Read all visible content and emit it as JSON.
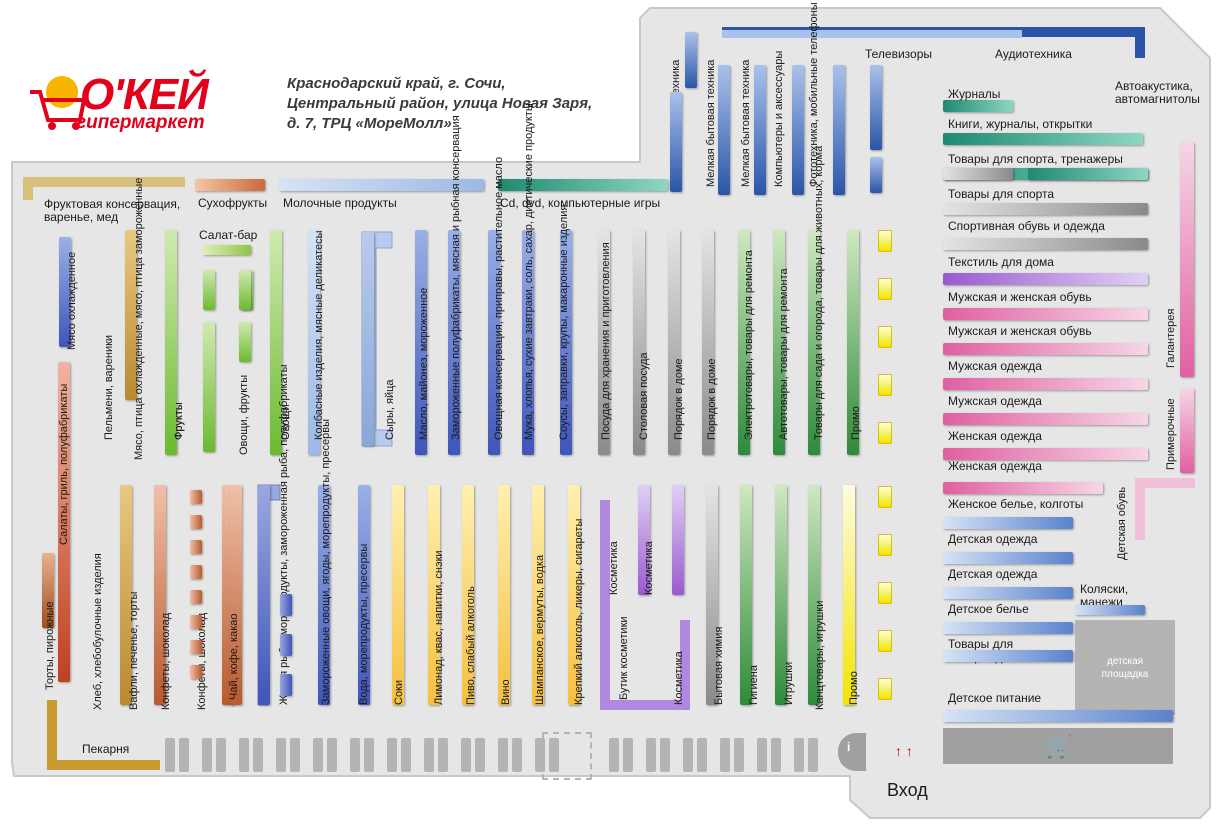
{
  "brand": {
    "name": "О'КЕЙ",
    "subtitle": "гипермаркет"
  },
  "address": {
    "line1": "Краснодарский край, г. Сочи,",
    "line2": "Центральный район, улица Новая Заря,",
    "line3": "д. 7, ТРЦ «МореМолл»"
  },
  "colors": {
    "floor": "#e6e6e6",
    "outline": "#c8c8c8",
    "accent": "#e3001b",
    "blue": "#2a55a8",
    "green": "#2e8a3a",
    "teal": "#1e8a70",
    "pink": "#e060a0",
    "yellow": "#f2e400",
    "brown": "#b85a30",
    "gold": "#c89a30",
    "purple": "#9a5ad0",
    "gray": "#8a8a8a",
    "slate": "#5a6ab8"
  },
  "top_labels": {
    "fruit_conserve": "Фруктовая консервация, варенье, мед",
    "dried_fruit": "Сухофрукты",
    "dairy": "Молочные продукты",
    "cd_dvd": "Cd, dvd, компьютерные игры",
    "tv": "Телевизоры",
    "audio": "Аудиотехника",
    "auto_acoustics": "Автоакустика, автомагнитолы",
    "salad_bar": "Салат-бар"
  },
  "upper_aisles": [
    "Мясо охлажденное",
    "Пельмени, вареники",
    "Мясо, птица охлажденные, мясо, птица замороженные",
    "Фрукты",
    "Фрукты",
    "Овощи, фрукты",
    "Овощи",
    "Колбасные изделия, мясные деликатесы",
    "Сыры, яйца",
    "Масло, майонез, мороженное",
    "Замороженные полуфабрикаты, мясная и рыбная консервация",
    "Овощная консервация, приправы, растительное масло",
    "Мука, хлопья, сухие завтраки, соль, сахар, диетические продукты",
    "Соусы, заправки, крупы, макаронные изделия",
    "Посуда для хранения и приготовления",
    "Столовая посуда",
    "Порядок в доме",
    "Порядок в доме",
    "Электротовары, товары для ремонта",
    "Автотовары, товары для ремонта",
    "Товары для сада и огорода, товары для животных, корма",
    "Промо"
  ],
  "lower_aisles": [
    "Торты, пирожные",
    "Салаты, гриль, полуфабрикаты",
    "Хлеб, хлебобулочные изделия",
    "Вафли, печенье, торты",
    "Конфеты, шоколад",
    "Конфеты, шоколад",
    "Чай, кофе, какао",
    "Живая рыба, морепродукты, замороженная рыба, полуфабрикаты",
    "Замороженные овощи, ягоды, морепродукты, пресервы",
    "Вода, морепродукты, пресервы",
    "Соки",
    "Лимонад, квас, напитки, снэки",
    "Пиво, слабый алкоголь",
    "Вино",
    "Шампанское, вермуты, водка",
    "Крепкий алкоголь, ликеры, сигареты",
    "Косметика",
    "Косметика",
    "Бутик косметики",
    "Косметика",
    "Бытовая химия",
    "Гигиена",
    "Игрушки",
    "Канцтовары, игрушки",
    "Промо"
  ],
  "electronics": [
    "Мелкая бытовая техника",
    "Мелкая бытовая техника",
    "Мелкая бытовая техника",
    "Компьютеры и аксессуары",
    "Фототехника, мобильные телефоны"
  ],
  "right_zone": [
    "Журналы",
    "Книги, журналы, открытки",
    "Товары для спорта, тренажеры",
    "Товары для спорта",
    "Спортивная обувь и одежда",
    "Текстиль для дома",
    "Мужская и женская обувь",
    "Мужская и женская обувь",
    "Мужская одежда",
    "Мужская одежда",
    "Женская одежда",
    "Женская одежда",
    "Женское белье, колготы",
    "Детская одежда",
    "Детская одежда",
    "Детское белье",
    "Товары для новорожденных",
    "Детское питание"
  ],
  "right_vertical": {
    "haberdashery": "Галантерея",
    "fitting": "Примерочные",
    "kids_shoes": "Детская обувь",
    "strollers": "Коляски, манежи",
    "playground": "детская площадка"
  },
  "bottom": {
    "bakery": "Пекарня",
    "entrance": "Вход",
    "info": "i"
  }
}
